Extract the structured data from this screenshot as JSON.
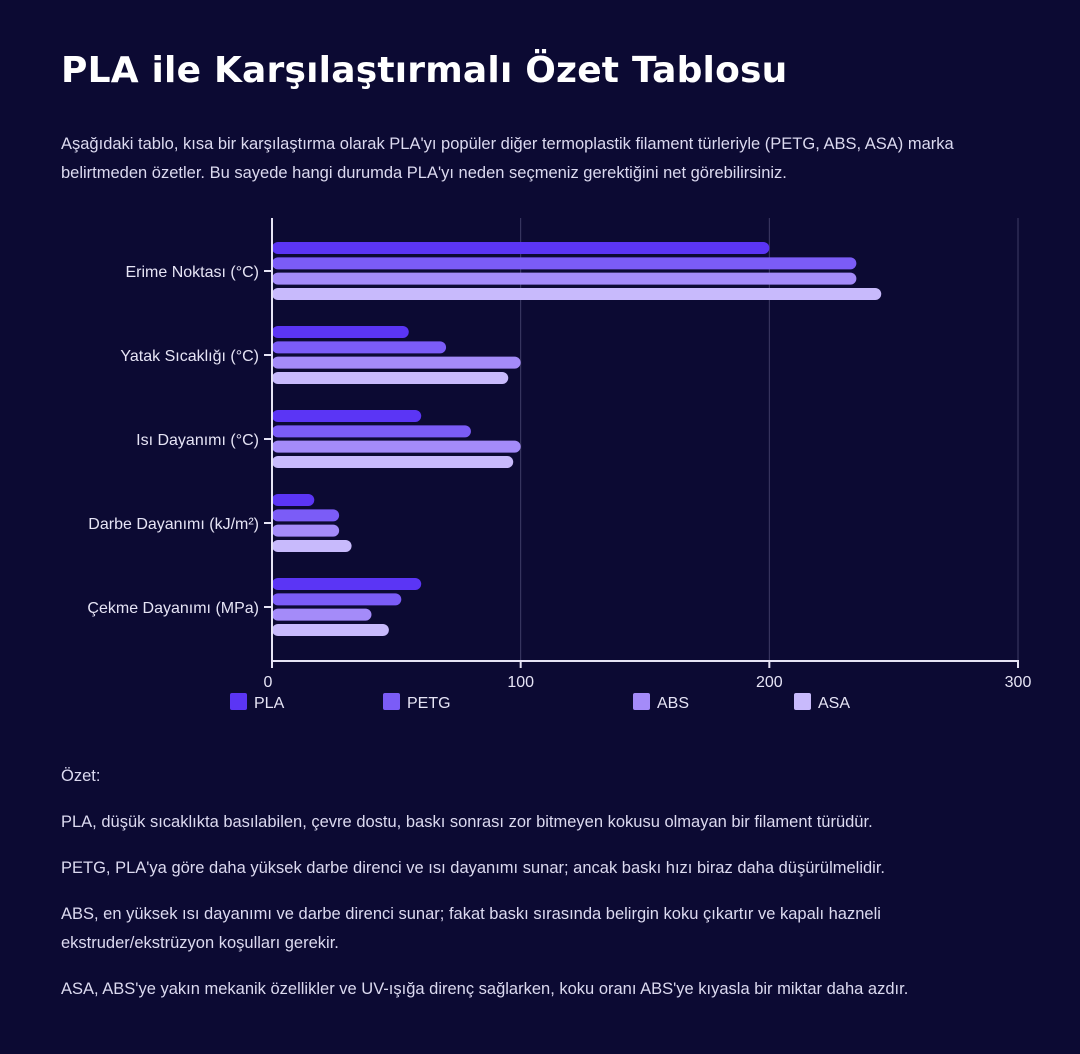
{
  "page": {
    "title": "PLA ile Karşılaştırmalı Özet Tablosu",
    "intro": "Aşağıdaki tablo, kısa bir karşılaştırma olarak PLA'yı popüler diğer termoplastik filament türleriyle (PETG, ABS, ASA) marka belirtmeden özetler. Bu sayede hangi durumda PLA'yı neden seçmeniz gerektiğini net görebilirsiniz.",
    "summary_heading": "Özet:",
    "summary_items": [
      "PLA, düşük sıcaklıkta basılabilen, çevre dostu, baskı sonrası zor bitmeyen kokusu olmayan bir filament türüdür.",
      "PETG, PLA'ya göre daha yüksek darbe direnci ve ısı dayanımı sunar; ancak baskı hızı biraz daha düşürülmelidir.",
      "ABS, en yüksek ısı dayanımı ve darbe direnci sunar; fakat baskı sırasında belirgin koku çıkartır ve kapalı hazneli ekstruder/ekstrüzyon koşulları gerekir.",
      "ASA, ABS'ye yakın mekanik özellikler ve UV-ışığa direnç sağlarken, koku oranı ABS'ye kıyasla bir miktar daha azdır."
    ]
  },
  "chart_data": {
    "type": "bar",
    "orientation": "horizontal",
    "categories": [
      "Erime Noktası (°C)",
      "Yatak Sıcaklığı (°C)",
      "Isı Dayanımı (°C)",
      "Darbe Dayanımı (kJ/m²)",
      "Çekme Dayanımı (MPa)"
    ],
    "series": [
      {
        "name": "PLA",
        "color": "#5b35f5",
        "values": [
          200,
          55,
          60,
          17,
          60
        ]
      },
      {
        "name": "PETG",
        "color": "#7b5cf7",
        "values": [
          235,
          70,
          80,
          27,
          52
        ]
      },
      {
        "name": "ABS",
        "color": "#a48bf9",
        "values": [
          235,
          100,
          100,
          27,
          40
        ]
      },
      {
        "name": "ASA",
        "color": "#c8bafc",
        "values": [
          245,
          95,
          97,
          32,
          47
        ]
      }
    ],
    "xlim": [
      0,
      300
    ],
    "xticks": [
      0,
      100,
      200,
      300
    ],
    "grid": true,
    "legend_position": "bottom"
  }
}
